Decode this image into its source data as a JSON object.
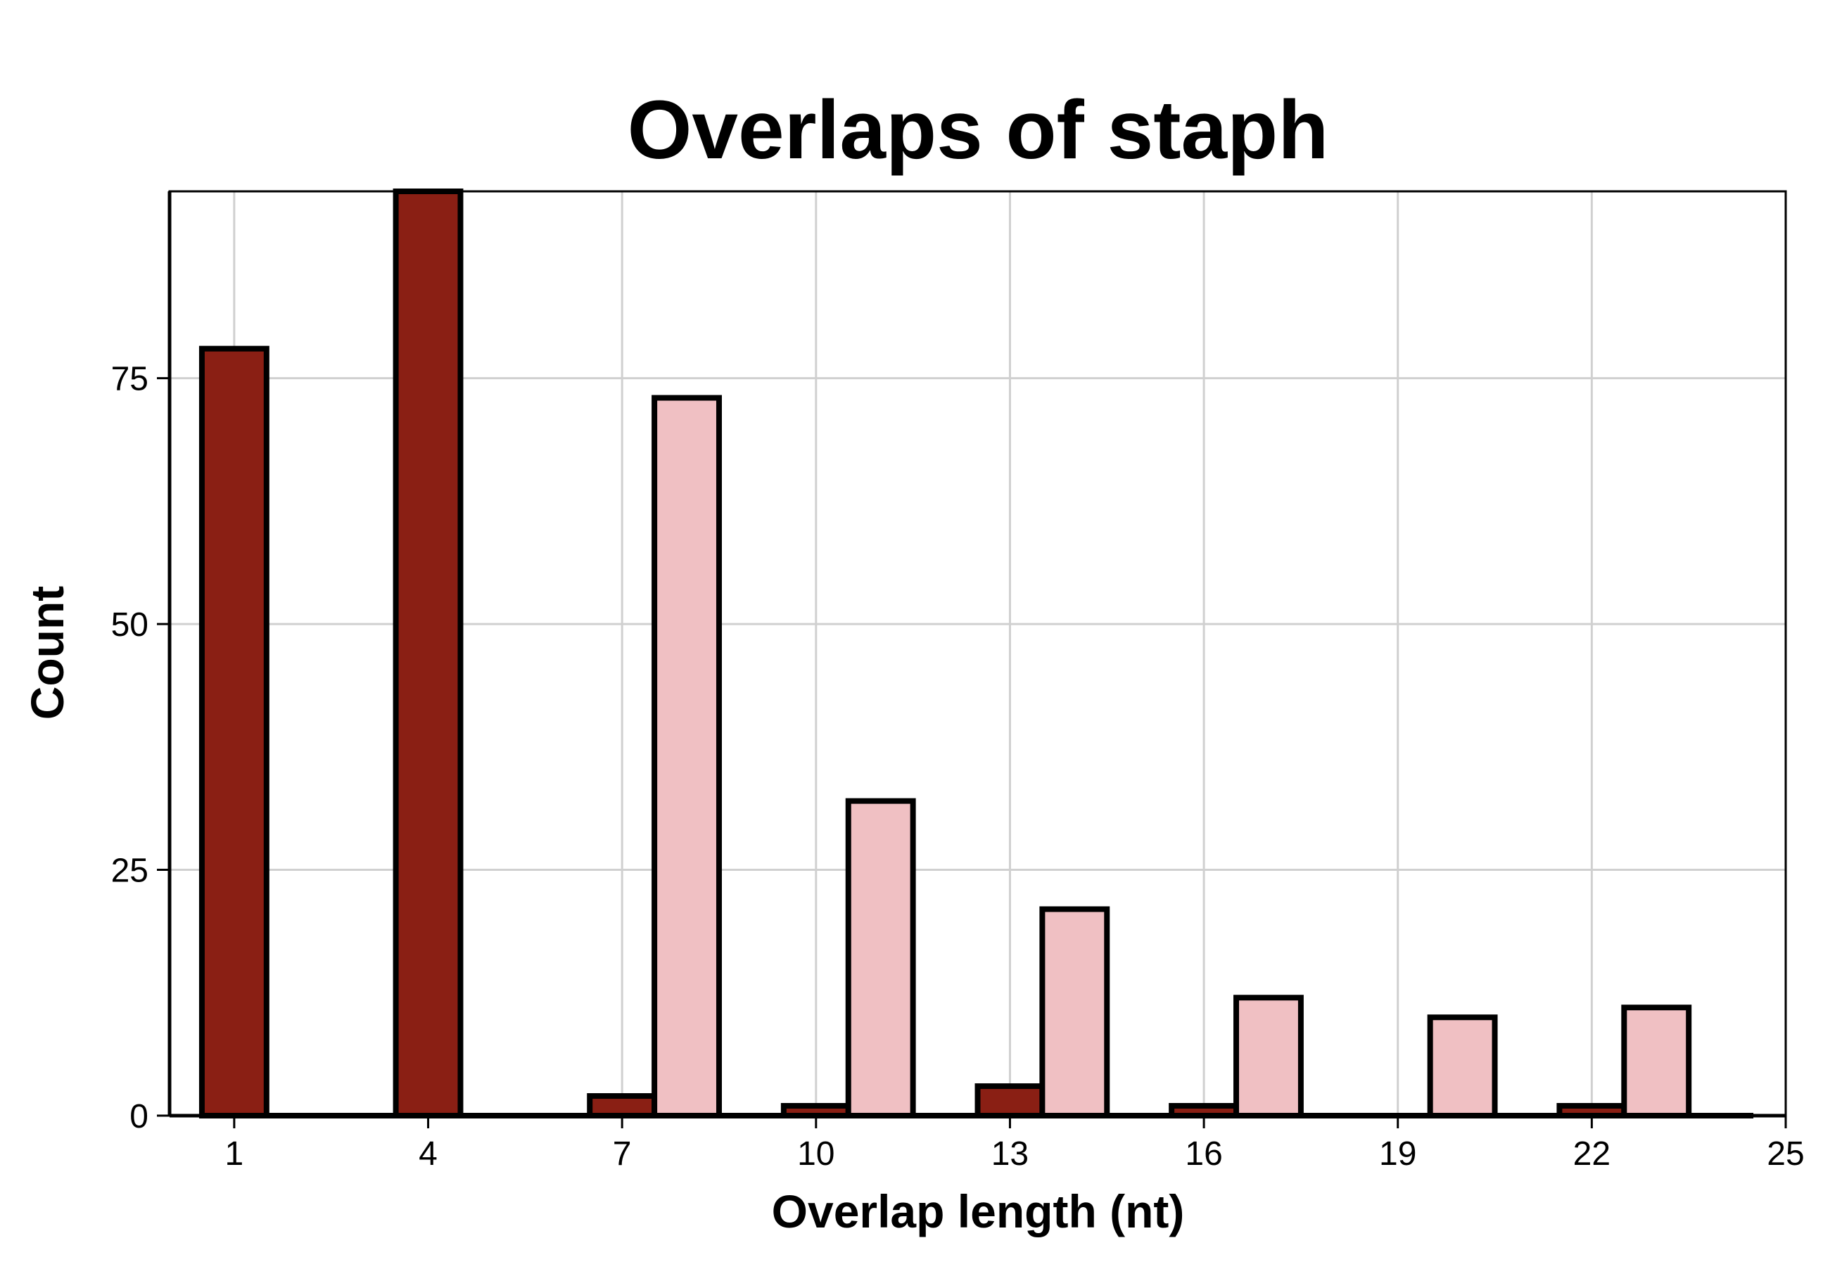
{
  "chart_data": {
    "type": "bar",
    "title": "Overlaps of staph",
    "xlabel": "Overlap length (nt)",
    "ylabel": "Count",
    "xlim": [
      0,
      25
    ],
    "ylim": [
      0,
      94
    ],
    "x_ticks": [
      1,
      4,
      7,
      10,
      13,
      16,
      19,
      22,
      25
    ],
    "y_ticks": [
      0,
      25,
      50,
      75
    ],
    "grid": true,
    "legend": "none",
    "bar_width": 1,
    "series": [
      {
        "color": "#8a1f14",
        "points": [
          {
            "x": 1,
            "y": 78
          },
          {
            "x": 4,
            "y": 94
          },
          {
            "x": 7,
            "y": 2
          },
          {
            "x": 10,
            "y": 1
          },
          {
            "x": 13,
            "y": 3
          },
          {
            "x": 16,
            "y": 1
          },
          {
            "x": 22,
            "y": 1
          }
        ]
      },
      {
        "color": "#f0c0c3",
        "points": [
          {
            "x": 8,
            "y": 73
          },
          {
            "x": 11,
            "y": 32
          },
          {
            "x": 14,
            "y": 21
          },
          {
            "x": 17,
            "y": 12
          },
          {
            "x": 20,
            "y": 10
          },
          {
            "x": 23,
            "y": 11
          }
        ]
      }
    ]
  }
}
